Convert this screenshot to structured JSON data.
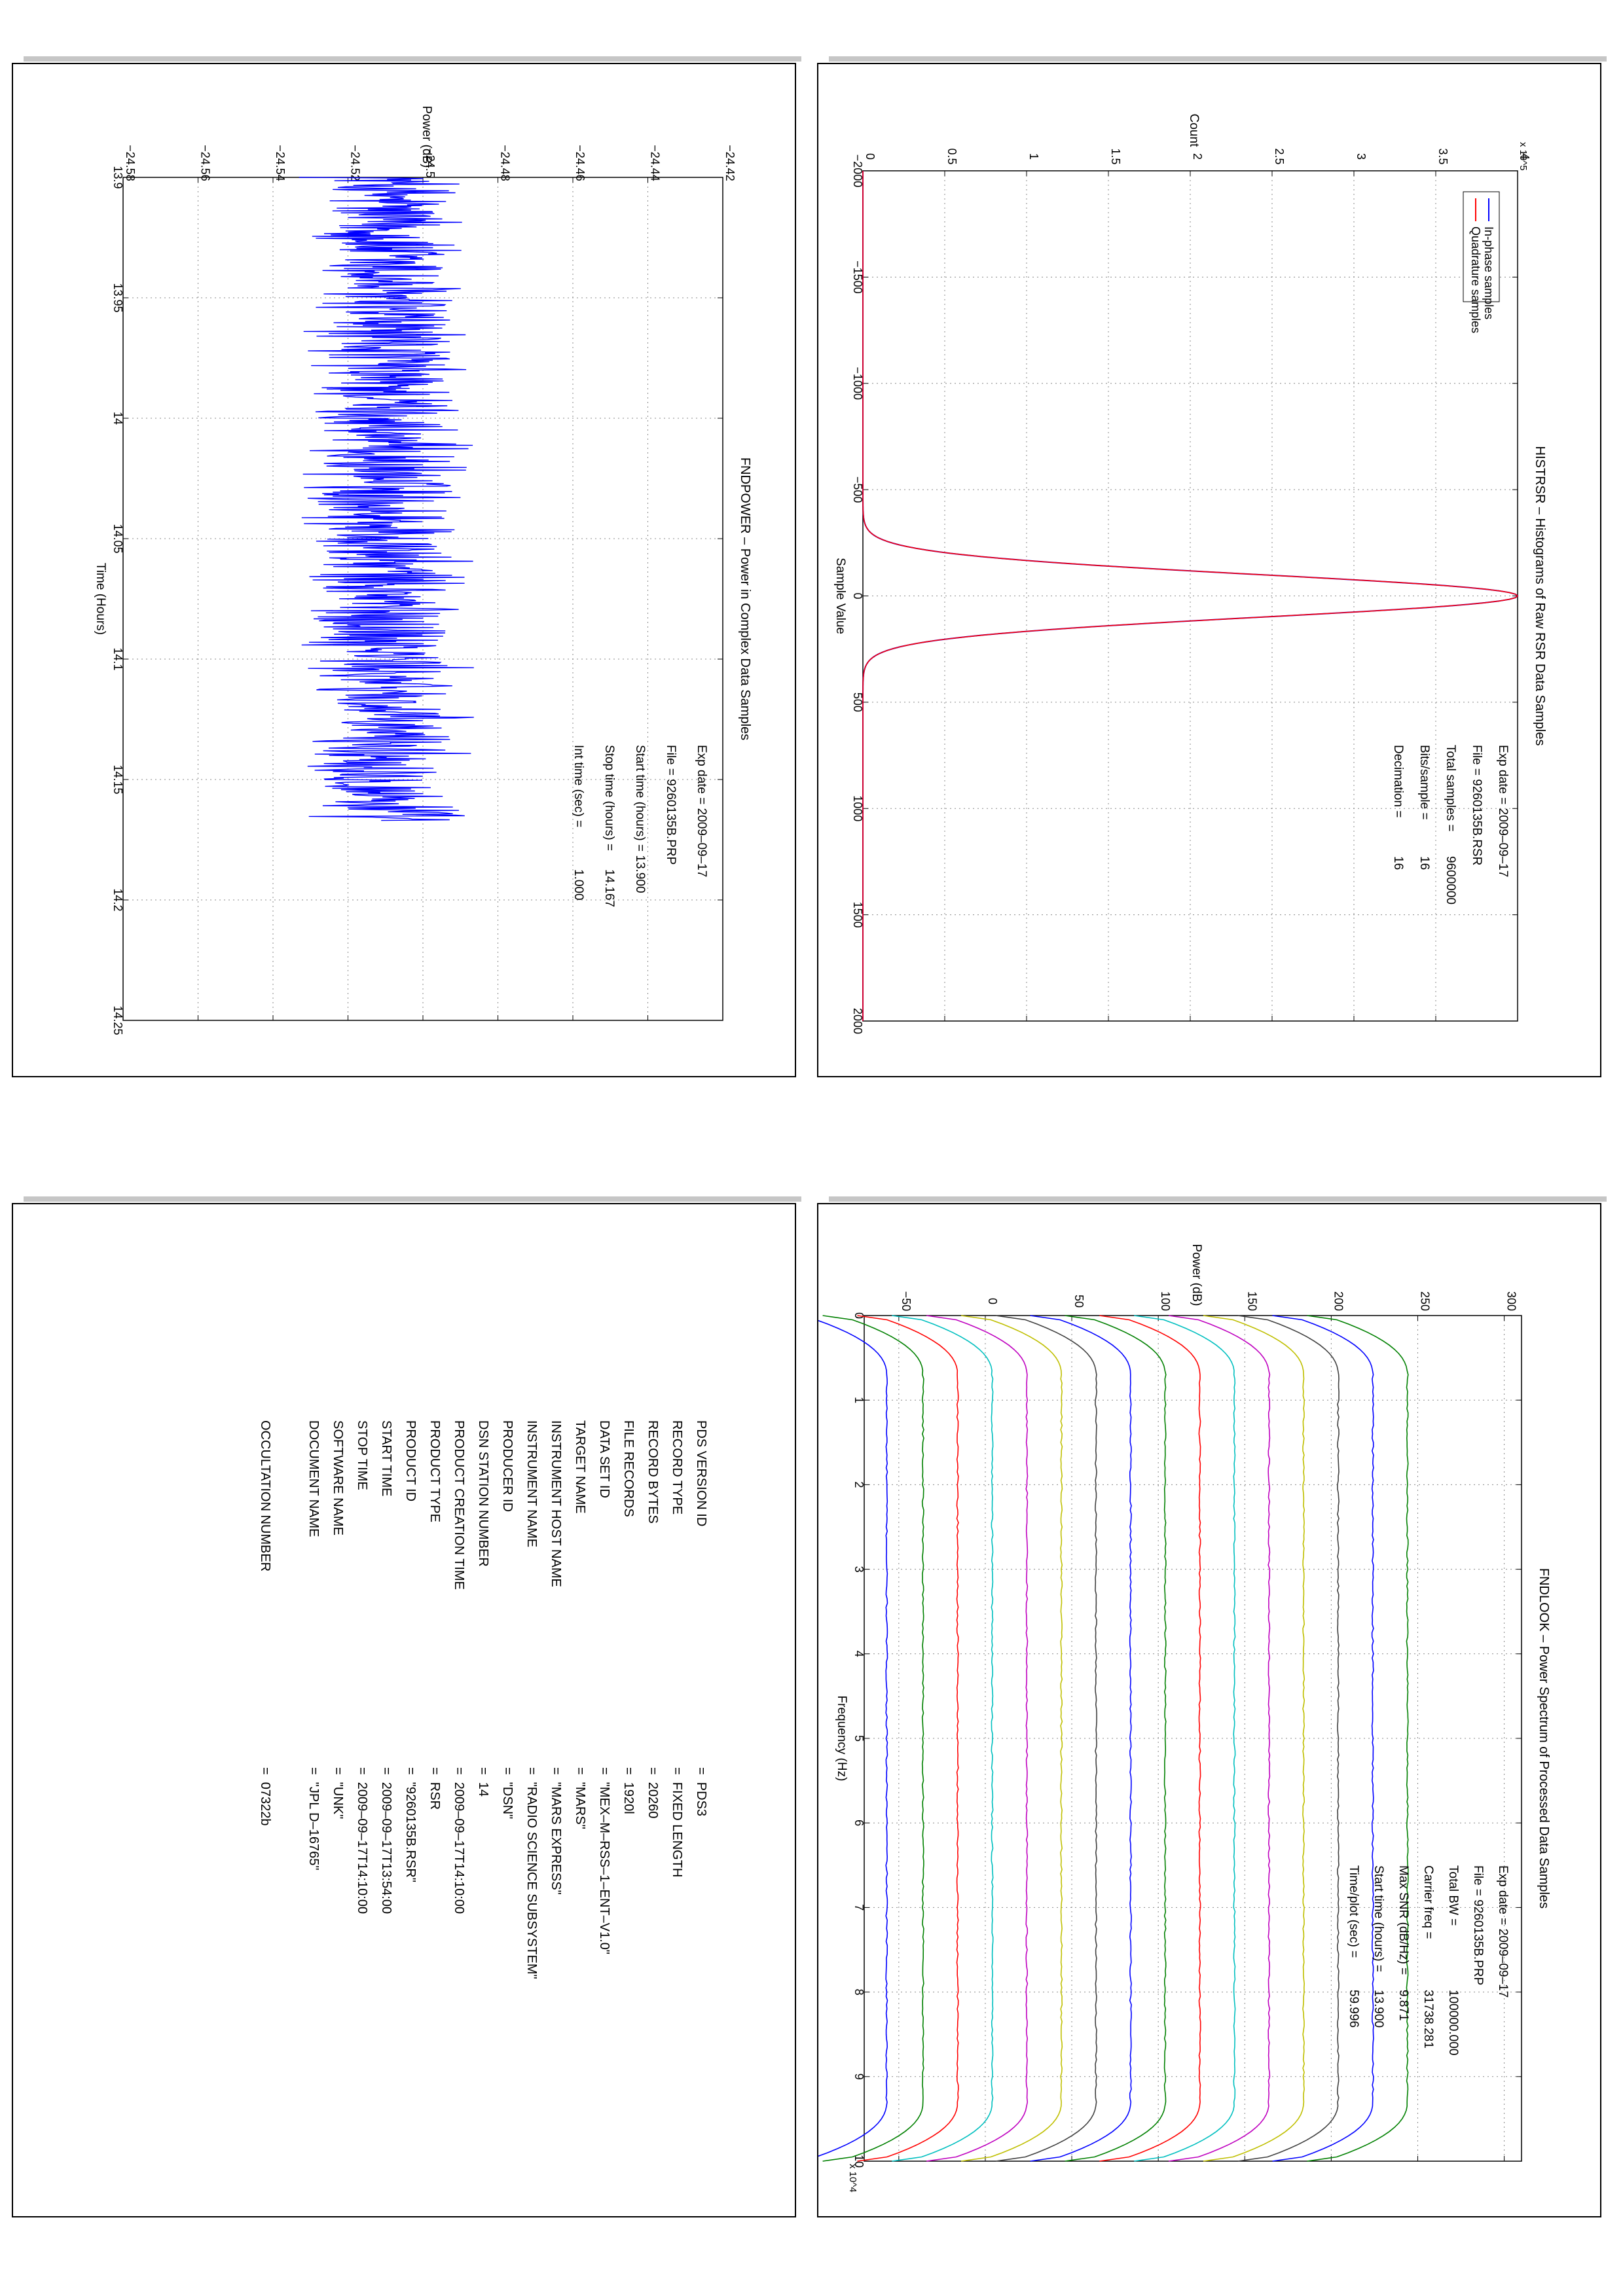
{
  "panels": {
    "histogram": {
      "title": "HISTRSR – Histograms of Raw RSR Data Samples",
      "info": [
        {
          "label": "Exp date = 2009–09–17",
          "value": ""
        },
        {
          "label": "File = 9260135B.RSR",
          "value": ""
        },
        {
          "label": "Total samples =",
          "value": "9600000"
        },
        {
          "label": "Bits/sample   =",
          "value": "16"
        },
        {
          "label": "Decimation    =",
          "value": "16"
        }
      ]
    },
    "power": {
      "title": "FNDPOWER – Power in Complex Data Samples",
      "info": [
        {
          "label": "Exp date = 2009–09–17",
          "value": ""
        },
        {
          "label": "File = 9260135B.PRP",
          "value": ""
        },
        {
          "label": "Start time (hours) = 13.900",
          "value": ""
        },
        {
          "label": "Stop time (hours) =",
          "value": "14.167"
        },
        {
          "label": "Int time (sec) =",
          "value": "1.000"
        }
      ]
    },
    "spectrum": {
      "title": "FNDLOOK – Power Spectrum of Processed Data Samples",
      "info": [
        {
          "label": "Exp date = 2009–09–17",
          "value": ""
        },
        {
          "label": "File = 9260135B.PRP",
          "value": ""
        },
        {
          "label": "Total BW =",
          "value": "100000.000"
        },
        {
          "label": "Carrier freq =",
          "value": "31738.281"
        },
        {
          "label": "Max SNR (dB/Hz) =",
          "value": "9.871"
        },
        {
          "label": "Start time (hours) =",
          "value": "13.900"
        },
        {
          "label": "Time/plot (sec) =",
          "value": "59.996"
        }
      ]
    },
    "label_table": {
      "rows": [
        {
          "key": "PDS VERSION ID",
          "value": "=  PDS3"
        },
        {
          "key": "RECORD TYPE",
          "value": "=  FIXED LENGTH"
        },
        {
          "key": "RECORD BYTES",
          "value": "=  20260"
        },
        {
          "key": "FILE RECORDS",
          "value": "=  1920l"
        },
        {
          "key": "DATA SET ID",
          "value": "=  \"MEX–M–RSS–1–ENT–V1.0\""
        },
        {
          "key": "TARGET NAME",
          "value": "=  \"MARS\""
        },
        {
          "key": "INSTRUMENT HOST NAME",
          "value": "=  \"MARS EXPRESS\""
        },
        {
          "key": "INSTRUMENT NAME",
          "value": "=  \"RADIO SCIENCE SUBSYSTEM\""
        },
        {
          "key": "PRODUCER ID",
          "value": "=  \"DSN\""
        },
        {
          "key": "DSN STATION NUMBER",
          "value": "=  14"
        },
        {
          "key": "PRODUCT CREATION TIME",
          "value": "=  2009–09–17T14:10:00"
        },
        {
          "key": "PRODUCT TYPE",
          "value": "=  RSR"
        },
        {
          "key": "PRODUCT ID",
          "value": "=  \"9260135B.RSR\""
        },
        {
          "key": "START TIME",
          "value": "=  2009–09–17T13:54:00"
        },
        {
          "key": "STOP TIME",
          "value": "=  2009–09–17T14:10:00"
        },
        {
          "key": "SOFTWARE NAME",
          "value": "=  \"UNK\""
        },
        {
          "key": "DOCUMENT NAME",
          "value": "=  \"JPL D–16765\""
        },
        {
          "key": "",
          "value": ""
        },
        {
          "key": "OCCULTATION NUMBER",
          "value": "=  07322b"
        }
      ]
    }
  },
  "chart_data": [
    {
      "type": "line",
      "title": "HISTRSR – Histograms of Raw RSR Data Samples",
      "xlabel": "Sample Value",
      "ylabel": "Count",
      "y_exponent_label": "x 10^5",
      "xlim": [
        -2000,
        2000
      ],
      "ylim": [
        0,
        4
      ],
      "xticks": [
        -2000,
        -1500,
        -1000,
        -500,
        0,
        500,
        1000,
        1500,
        2000
      ],
      "yticks": [
        0,
        0.5,
        1,
        1.5,
        2,
        2.5,
        3,
        3.5,
        4
      ],
      "xtick_labels": [
        "−2000",
        "−1500",
        "−1000",
        "−500",
        "0",
        "500",
        "1000",
        "1500",
        "2000"
      ],
      "ytick_labels": [
        "0",
        "0.5",
        "1",
        "1.5",
        "2",
        "2.5",
        "3",
        "3.5",
        "4"
      ],
      "grid": true,
      "legend": "top-left",
      "series": [
        {
          "name": "In-phase samples",
          "color": "#0000ff",
          "peak": 4.0,
          "sigma": 100
        },
        {
          "name": "Quadrature samples",
          "color": "#ff0000",
          "peak": 4.0,
          "sigma": 100
        }
      ]
    },
    {
      "type": "line",
      "title": "FNDPOWER – Power in Complex Data Samples",
      "xlabel": "Time (Hours)",
      "ylabel": "Power (dB)",
      "xlim": [
        13.9,
        14.25
      ],
      "ylim": [
        -24.58,
        -24.42
      ],
      "xticks": [
        13.9,
        13.95,
        14,
        14.05,
        14.1,
        14.15,
        14.2,
        14.25
      ],
      "yticks": [
        -24.58,
        -24.56,
        -24.54,
        -24.52,
        -24.5,
        -24.48,
        -24.46,
        -24.44,
        -24.42
      ],
      "xtick_labels": [
        "13.9",
        "13.95",
        "14",
        "14.05",
        "14.1",
        "14.15",
        "14.2",
        "14.25"
      ],
      "ytick_labels": [
        "−24.58",
        "−24.56",
        "−24.54",
        "−24.52",
        "−24.5",
        "−24.48",
        "−24.46",
        "−24.44",
        "−24.42"
      ],
      "grid": true,
      "series": [
        {
          "color": "#0000ff",
          "x_start": 13.9,
          "x_end": 14.167,
          "mean": -24.51,
          "spread": 0.024
        }
      ]
    },
    {
      "type": "line",
      "title": "FNDLOOK – Power Spectrum of Processed Data Samples",
      "xlabel": "Frequency (Hz)",
      "ylabel": "Power (dB)",
      "x_exponent_label": "x 10^4",
      "xlim": [
        0,
        10
      ],
      "ylim": [
        -70,
        310
      ],
      "xticks": [
        0,
        1,
        2,
        3,
        4,
        5,
        6,
        7,
        8,
        9,
        10
      ],
      "yticks": [
        -50,
        0,
        50,
        100,
        150,
        200,
        250,
        300
      ],
      "xtick_labels": [
        "0",
        "1",
        "2",
        "3",
        "4",
        "5",
        "6",
        "7",
        "8",
        "9",
        "10"
      ],
      "ytick_labels": [
        "−50",
        "0",
        "50",
        "100",
        "150",
        "200",
        "250",
        "300"
      ],
      "grid": true,
      "series": [
        {
          "color": "#0000ff",
          "level": -57
        },
        {
          "color": "#008000",
          "level": -36
        },
        {
          "color": "#ff0000",
          "level": -16
        },
        {
          "color": "#00bfbf",
          "level": 4
        },
        {
          "color": "#bf00bf",
          "level": 24
        },
        {
          "color": "#bfbf00",
          "level": 44
        },
        {
          "color": "#404040",
          "level": 64
        },
        {
          "color": "#0000ff",
          "level": 84
        },
        {
          "color": "#008000",
          "level": 104
        },
        {
          "color": "#ff0000",
          "level": 124
        },
        {
          "color": "#00bfbf",
          "level": 144
        },
        {
          "color": "#bf00bf",
          "level": 164
        },
        {
          "color": "#bfbf00",
          "level": 184
        },
        {
          "color": "#404040",
          "level": 204
        },
        {
          "color": "#0000ff",
          "level": 224
        },
        {
          "color": "#008000",
          "level": 244
        }
      ]
    }
  ]
}
